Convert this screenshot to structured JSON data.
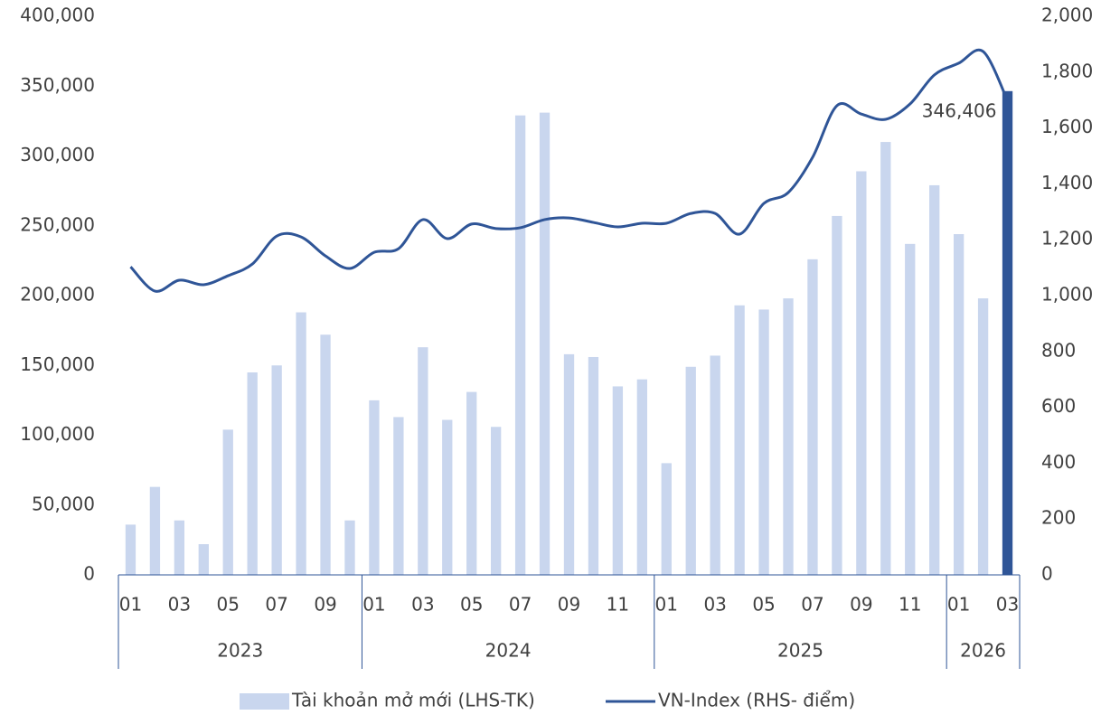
{
  "chart_data": {
    "type": "bar",
    "groups": [
      {
        "label": "2023",
        "categories": [
          "01",
          null,
          "03",
          null,
          "05",
          null,
          "07",
          null,
          "09",
          null
        ]
      },
      {
        "label": "2024",
        "categories": [
          "01",
          null,
          "03",
          null,
          "05",
          null,
          "07",
          null,
          "09",
          null,
          "11",
          null
        ]
      },
      {
        "label": "2025",
        "categories": [
          "01",
          null,
          "03",
          null,
          "05",
          null,
          "07",
          null,
          "09",
          null,
          "11",
          null
        ]
      },
      {
        "label": "2026",
        "categories": [
          "01",
          null,
          "03"
        ]
      }
    ],
    "series": [
      {
        "name": "Tài khoản mở mới (LHS-TK)",
        "type": "bar",
        "color": "#c9d6ee",
        "colors": [
          "#c9d6ee",
          "#c9d6ee",
          "#c9d6ee",
          "#c9d6ee",
          "#c9d6ee",
          "#c9d6ee",
          "#c9d6ee",
          "#c9d6ee",
          "#c9d6ee",
          "#c9d6ee",
          "#c9d6ee",
          "#c9d6ee",
          "#c9d6ee",
          "#c9d6ee",
          "#c9d6ee",
          "#c9d6ee",
          "#c9d6ee",
          "#c9d6ee",
          "#c9d6ee",
          "#c9d6ee",
          "#c9d6ee",
          "#c9d6ee",
          "#c9d6ee",
          "#c9d6ee",
          "#c9d6ee",
          "#c9d6ee",
          "#c9d6ee",
          "#c9d6ee",
          "#c9d6ee",
          "#c9d6ee",
          "#c9d6ee",
          "#c9d6ee",
          "#c9d6ee",
          "#c9d6ee",
          "#c9d6ee",
          "#c9d6ee",
          "#2f5597"
        ],
        "values": [
          36000,
          63000,
          39000,
          22000,
          104000,
          145000,
          150000,
          188000,
          172000,
          39000,
          125000,
          113000,
          163000,
          111000,
          131000,
          106000,
          329000,
          331000,
          158000,
          156000,
          135000,
          140000,
          80000,
          149000,
          157000,
          193000,
          190000,
          198000,
          226000,
          257000,
          289000,
          310000,
          237000,
          279000,
          244000,
          198000,
          346406
        ],
        "value_labels": [
          null,
          null,
          null,
          null,
          null,
          null,
          null,
          null,
          null,
          null,
          null,
          null,
          null,
          null,
          null,
          null,
          null,
          null,
          null,
          null,
          null,
          null,
          null,
          null,
          null,
          null,
          null,
          null,
          null,
          null,
          null,
          null,
          null,
          null,
          null,
          null,
          "346,406"
        ]
      },
      {
        "name": "VN-Index (RHS- điểm)",
        "type": "line",
        "axis": "y2",
        "color": "#2f5597",
        "values": [
          1103,
          1016,
          1055,
          1039,
          1071,
          1113,
          1213,
          1210,
          1142,
          1097,
          1155,
          1168,
          1272,
          1204,
          1256,
          1240,
          1243,
          1272,
          1278,
          1262,
          1246,
          1259,
          1259,
          1294,
          1294,
          1220,
          1330,
          1369,
          1495,
          1680,
          1650,
          1631,
          1686,
          1790,
          1832,
          1874,
          1699
        ]
      }
    ],
    "ylim": [
      0,
      400000
    ],
    "yticks": [
      0,
      {
        "value": 50000,
        "label": "50,000"
      },
      {
        "value": 100000,
        "label": "100,000"
      },
      {
        "value": 150000,
        "label": "150,000"
      },
      {
        "value": 200000,
        "label": "200,000"
      },
      {
        "value": 250000,
        "label": "250,000"
      },
      {
        "value": 300000,
        "label": "300,000"
      },
      {
        "value": 350000,
        "label": "350,000"
      },
      {
        "value": 400000,
        "label": "400,000"
      }
    ],
    "y2lim": [
      0,
      2000
    ],
    "y2ticks": [
      0,
      200,
      400,
      600,
      800,
      {
        "value": 1000,
        "label": "1,000"
      },
      {
        "value": 1200,
        "label": "1,200"
      },
      {
        "value": 1400,
        "label": "1,400"
      },
      {
        "value": 1600,
        "label": "1,600"
      },
      {
        "value": 1800,
        "label": "1,800"
      },
      {
        "value": 2000,
        "label": "2,000"
      }
    ],
    "grid": false,
    "legend": "bottom"
  }
}
